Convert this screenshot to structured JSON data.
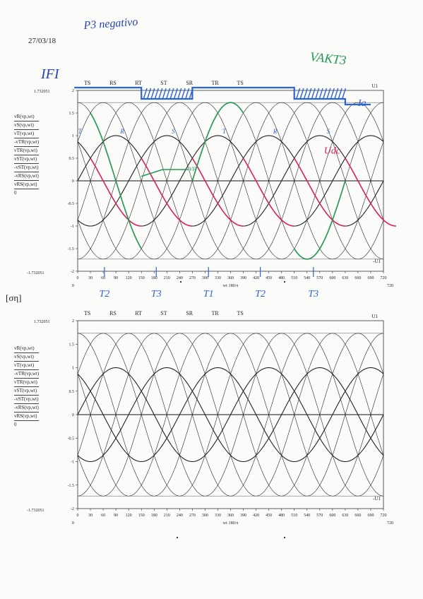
{
  "header": {
    "date": "27/03/18",
    "handwritten_title": "P3 negativo",
    "handwritten_vak": "VAKT3",
    "handwritten_ifi": "IFI"
  },
  "mid_label": "[ση]",
  "charts": [
    {
      "id": "top",
      "y_top_label": "1.732051",
      "y_bottom_label": "-1.732051",
      "phase_labels": [
        "TS",
        "RS",
        "RT",
        "ST",
        "SR",
        "TR",
        "TS"
      ],
      "corner_label_top": "U1",
      "corner_label_bottom": "-U1",
      "x_axis_label": "wt·180/π",
      "x_left_label": "0",
      "x_right_label": "720",
      "series_labels": [
        "vR(vp,wt)",
        "vS(vp,wt)",
        "vT(vp,wt)",
        "-vTR(vp,wt)",
        "vTR(vp,wt)",
        "vST(vp,wt)",
        "-vST(vp,wt)",
        "-vRS(vp,wt)",
        "vRS(vp,wt)",
        "0"
      ],
      "annotations": {
        "thyristor_labels": [
          {
            "text": "T2",
            "x": 63
          },
          {
            "text": "T3",
            "x": 185
          },
          {
            "text": "T1",
            "x": 308
          },
          {
            "text": "T2",
            "x": 430
          },
          {
            "text": "T3",
            "x": 555
          }
        ],
        "phase_hand_labels": [
          {
            "text": "T",
            "x": 5
          },
          {
            "text": "R",
            "x": 105
          },
          {
            "text": "S",
            "x": 225
          },
          {
            "text": "T",
            "x": 345
          },
          {
            "text": "R",
            "x": 465
          },
          {
            "text": "S",
            "x": 590
          }
        ],
        "ia_label": "Ia",
        "udc_label": "Udc",
        "vf_label": "VF"
      }
    },
    {
      "id": "bottom",
      "y_top_label": "1.732051",
      "y_bottom_label": "-1.732051",
      "phase_labels": [
        "TS",
        "RS",
        "RT",
        "ST",
        "SR",
        "TR",
        "TS"
      ],
      "corner_label_top": "U1",
      "corner_label_bottom": "-U1",
      "x_axis_label": "wt·180/π",
      "x_left_label": "0",
      "x_right_label": "720",
      "series_labels": [
        "vR(vp,wt)",
        "vS(vp,wt)",
        "vT(vp,wt)",
        "-vTR(vp,wt)",
        "vTR(vp,wt)",
        "vST(vp,wt)",
        "-vST(vp,wt)",
        "-vRS(vp,wt)",
        "vRS(vp,wt)",
        "0"
      ]
    }
  ],
  "chart_data": [
    {
      "type": "line",
      "title": "",
      "xlabel": "wt·180/π",
      "ylabel": "",
      "xlim": [
        0,
        720
      ],
      "ylim": [
        -2,
        2
      ],
      "x_ticks": [
        0,
        30,
        60,
        90,
        120,
        150,
        180,
        210,
        240,
        270,
        300,
        330,
        360,
        390,
        420,
        450,
        480,
        510,
        540,
        570,
        600,
        630,
        660,
        690,
        720
      ],
      "y_ticks": [
        -2,
        -1.5,
        -1,
        -0.5,
        0,
        0.5,
        1,
        1.5,
        2
      ],
      "series": [
        {
          "name": "vR",
          "amplitude": 1,
          "phase_deg": 0
        },
        {
          "name": "vS",
          "amplitude": 1,
          "phase_deg": -120
        },
        {
          "name": "vT",
          "amplitude": 1,
          "phase_deg": 120
        },
        {
          "name": "vRS",
          "amplitude": 1.732051,
          "phase_deg": 30
        },
        {
          "name": "-vRS",
          "amplitude": 1.732051,
          "phase_deg": 210
        },
        {
          "name": "vST",
          "amplitude": 1.732051,
          "phase_deg": -90
        },
        {
          "name": "-vST",
          "amplitude": 1.732051,
          "phase_deg": 90
        },
        {
          "name": "vTR",
          "amplitude": 1.732051,
          "phase_deg": 150
        },
        {
          "name": "-vTR",
          "amplitude": 1.732051,
          "phase_deg": -30
        }
      ],
      "grid": false
    },
    {
      "type": "line",
      "title": "",
      "xlabel": "wt·180/π",
      "ylabel": "",
      "xlim": [
        0,
        720
      ],
      "ylim": [
        -2,
        2
      ],
      "x_ticks": [
        0,
        30,
        60,
        90,
        120,
        150,
        180,
        210,
        240,
        270,
        300,
        330,
        360,
        390,
        420,
        450,
        480,
        510,
        540,
        570,
        600,
        630,
        660,
        690,
        720
      ],
      "y_ticks": [
        -2,
        -1.5,
        -1,
        -0.5,
        0,
        0.5,
        1,
        1.5,
        2
      ],
      "series": [
        {
          "name": "vR",
          "amplitude": 1,
          "phase_deg": 0
        },
        {
          "name": "vS",
          "amplitude": 1,
          "phase_deg": -120
        },
        {
          "name": "vT",
          "amplitude": 1,
          "phase_deg": 120
        },
        {
          "name": "vRS",
          "amplitude": 1.732051,
          "phase_deg": 30
        },
        {
          "name": "-vRS",
          "amplitude": 1.732051,
          "phase_deg": 210
        },
        {
          "name": "vST",
          "amplitude": 1.732051,
          "phase_deg": -90
        },
        {
          "name": "-vST",
          "amplitude": 1.732051,
          "phase_deg": 90
        },
        {
          "name": "vTR",
          "amplitude": 1.732051,
          "phase_deg": 150
        },
        {
          "name": "-vTR",
          "amplitude": 1.732051,
          "phase_deg": -30
        }
      ],
      "grid": false
    }
  ]
}
